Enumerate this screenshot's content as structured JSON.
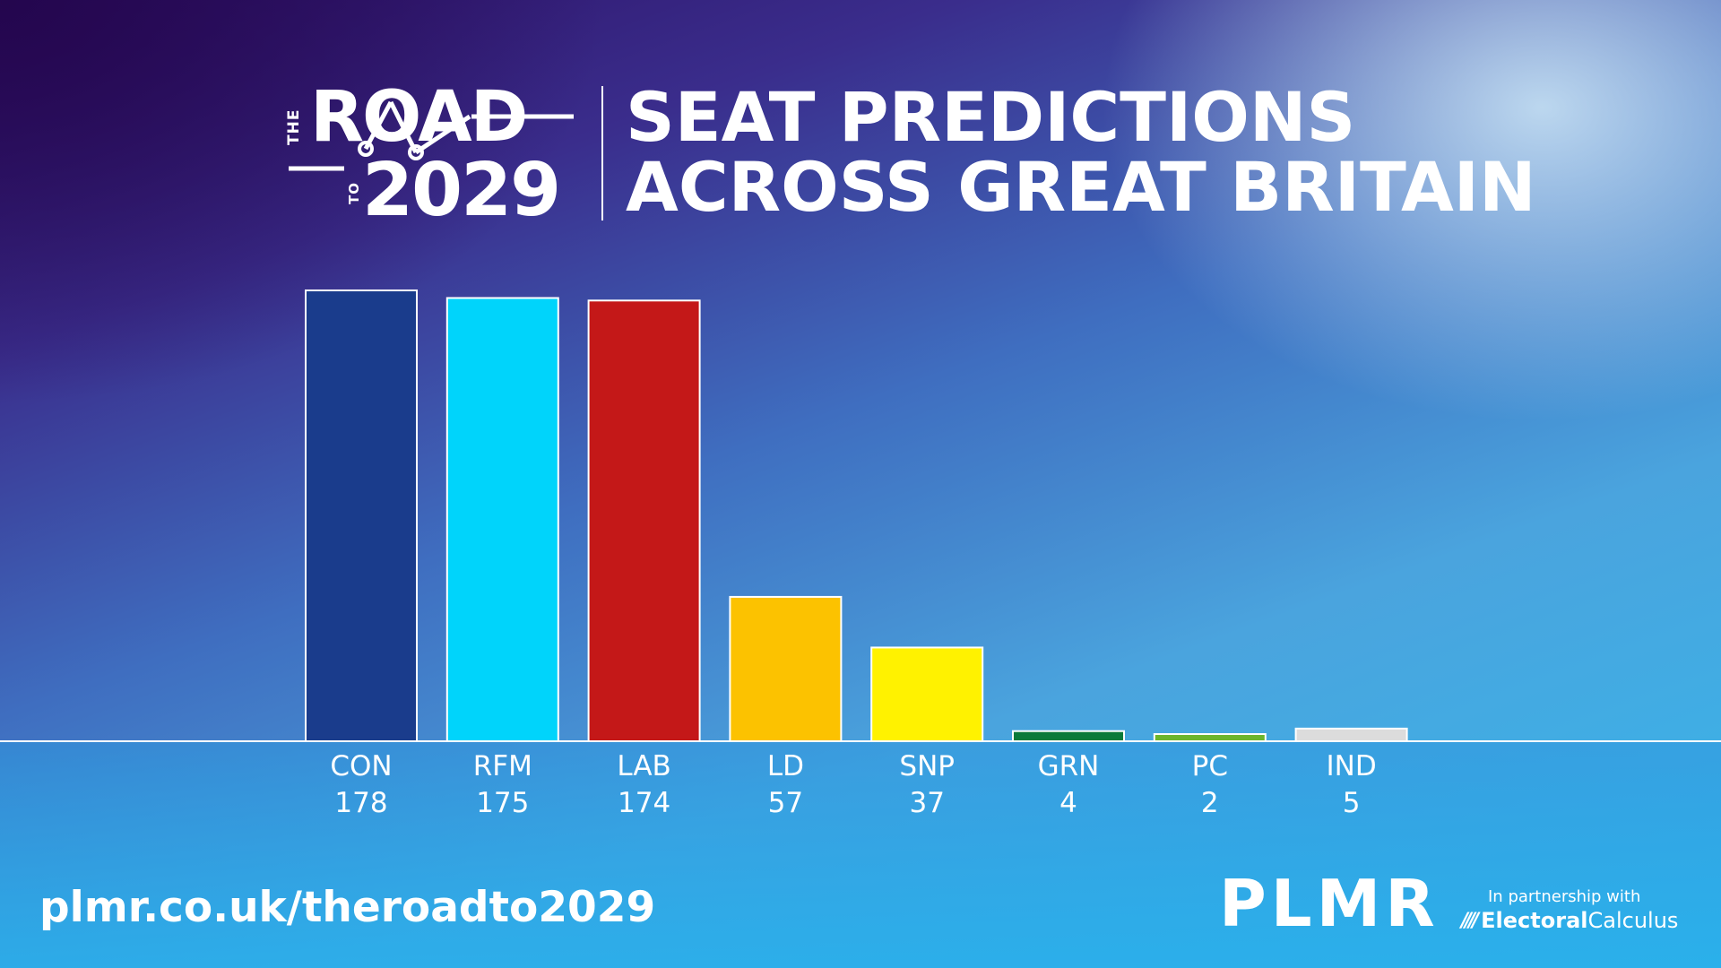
{
  "header": {
    "logo": {
      "the": "THE",
      "road": "ROAD",
      "to": "TO",
      "year": "2029"
    },
    "title_line1": "SEAT PREDICTIONS",
    "title_line2": "ACROSS GREAT BRITAIN"
  },
  "chart_data": {
    "type": "bar",
    "title": "SEAT PREDICTIONS ACROSS GREAT BRITAIN",
    "xlabel": "",
    "ylabel": "",
    "categories": [
      "CON",
      "RFM",
      "LAB",
      "LD",
      "SNP",
      "GRN",
      "PC",
      "IND"
    ],
    "values": [
      178,
      175,
      174,
      57,
      37,
      4,
      2,
      5
    ],
    "colors": [
      "#1a3c8c",
      "#00d4fb",
      "#c41818",
      "#fcc200",
      "#fff200",
      "#0a7a3a",
      "#6cb52c",
      "#dcdcdc"
    ],
    "ylim": [
      0,
      178
    ],
    "grid": false,
    "legend": "none",
    "value_labels": [
      "178",
      "175",
      "174",
      "57",
      "37",
      "4",
      "2",
      "5"
    ]
  },
  "footer": {
    "url": "plmr.co.uk/theroadto2029",
    "brand": "PLMR",
    "partner_text": "In partnership with",
    "partner_name_a": "Electoral",
    "partner_name_b": "Calculus"
  },
  "colors": {
    "text": "#ffffff",
    "baseline": "#ffffff",
    "bar_stroke": "#ffffff"
  }
}
